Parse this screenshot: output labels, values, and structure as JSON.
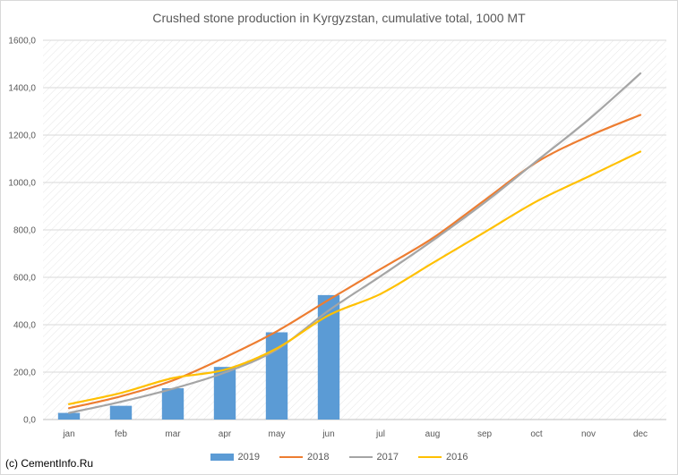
{
  "chart_data": {
    "type": "bar+line",
    "title": "Crushed stone production in Kyrgyzstan, cumulative total, 1000 MT",
    "categories": [
      "jan",
      "feb",
      "mar",
      "apr",
      "may",
      "jun",
      "jul",
      "aug",
      "sep",
      "oct",
      "nov",
      "dec"
    ],
    "y_tick_labels": [
      "0,0",
      "200,0",
      "400,0",
      "600,0",
      "800,0",
      "1000,0",
      "1200,0",
      "1400,0",
      "1600,0"
    ],
    "ylim": [
      0,
      1600
    ],
    "grid": "horizontal",
    "legend_position": "bottom",
    "bar_series": {
      "name": "2019",
      "color": "#5b9bd5",
      "values": [
        28,
        58,
        132,
        222,
        368,
        525,
        null,
        null,
        null,
        null,
        null,
        null
      ]
    },
    "line_series": [
      {
        "name": "2018",
        "color": "#ed7d31",
        "values": [
          48,
          98,
          165,
          262,
          372,
          505,
          635,
          765,
          925,
          1085,
          1195,
          1285
        ]
      },
      {
        "name": "2017",
        "color": "#a5a5a5",
        "values": [
          28,
          75,
          130,
          198,
          295,
          460,
          605,
          755,
          915,
          1090,
          1265,
          1460
        ]
      },
      {
        "name": "2016",
        "color": "#ffc000",
        "values": [
          65,
          112,
          175,
          210,
          300,
          440,
          530,
          660,
          790,
          920,
          1025,
          1130
        ]
      }
    ]
  },
  "footer": {
    "copyright": "(c) CementInfo.Ru"
  }
}
